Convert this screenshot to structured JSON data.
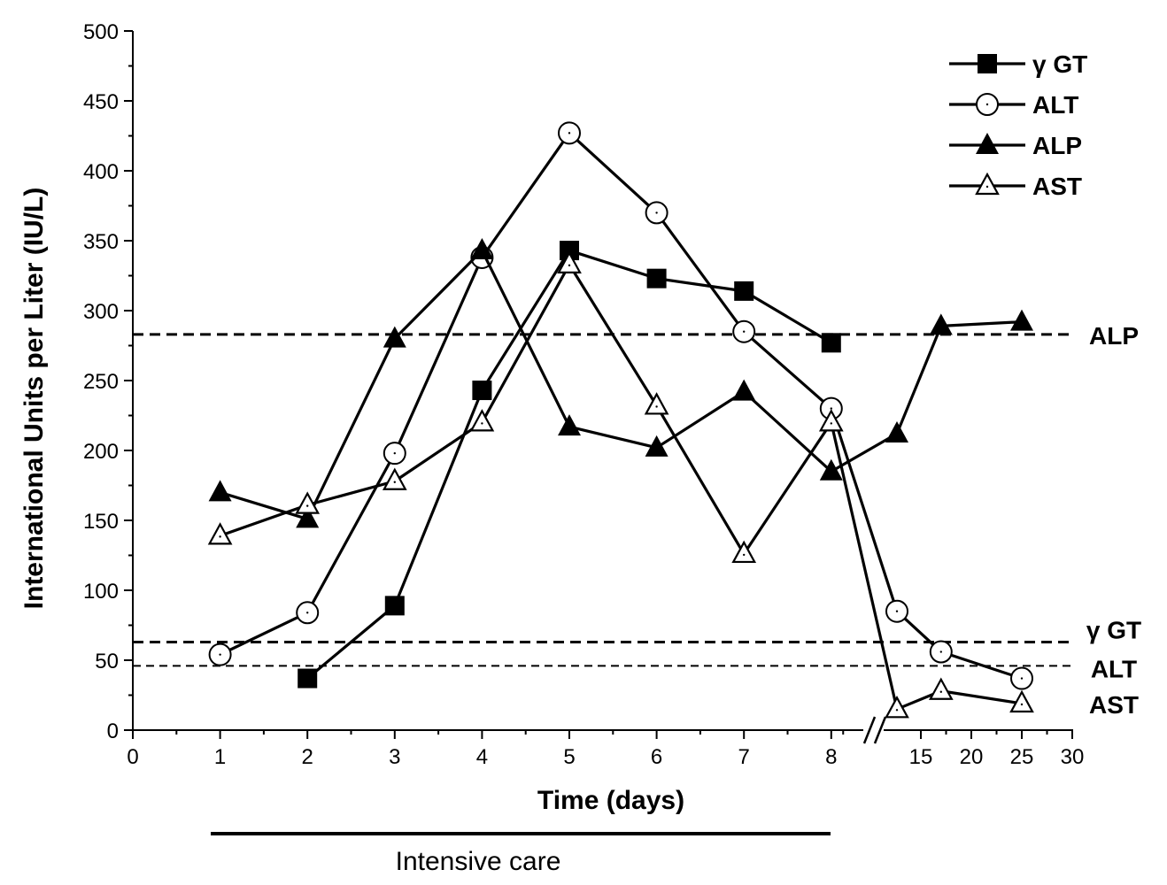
{
  "chart_data": {
    "type": "line",
    "title": "",
    "xlabel": "Time (days)",
    "ylabel": "International Units per Liter  (IU/L)",
    "ylim": [
      0,
      500
    ],
    "y_ticks": [
      "0",
      "50",
      "100",
      "150",
      "200",
      "250",
      "300",
      "350",
      "400",
      "450",
      "500"
    ],
    "x_ticks": [
      "0",
      "1",
      "2",
      "3",
      "4",
      "5",
      "6",
      "7",
      "8",
      "15",
      "20",
      "25",
      "30"
    ],
    "x_axis_note": "broken axis between day 8 and day 15",
    "series": [
      {
        "name": "γ GT",
        "marker": "filled-square",
        "points": [
          [
            2,
            37
          ],
          [
            3,
            89
          ],
          [
            4,
            243
          ],
          [
            5,
            343
          ],
          [
            6,
            323
          ],
          [
            7,
            314
          ],
          [
            8,
            277
          ]
        ]
      },
      {
        "name": "ALT",
        "marker": "open-circle",
        "points": [
          [
            1,
            54
          ],
          [
            2,
            84
          ],
          [
            3,
            198
          ],
          [
            4,
            338
          ],
          [
            5,
            427
          ],
          [
            6,
            370
          ],
          [
            7,
            285
          ],
          [
            8,
            230
          ],
          [
            13,
            85
          ],
          [
            17,
            56
          ],
          [
            25,
            37
          ]
        ]
      },
      {
        "name": "ALP",
        "marker": "filled-triangle",
        "points": [
          [
            1,
            170
          ],
          [
            2,
            151
          ],
          [
            3,
            280
          ],
          [
            4,
            343
          ],
          [
            5,
            217
          ],
          [
            6,
            202
          ],
          [
            7,
            242
          ],
          [
            8,
            185
          ],
          [
            13,
            212
          ],
          [
            17,
            289
          ],
          [
            25,
            292
          ]
        ]
      },
      {
        "name": "AST",
        "marker": "open-triangle",
        "points": [
          [
            1,
            139
          ],
          [
            2,
            161
          ],
          [
            3,
            178
          ],
          [
            4,
            220
          ],
          [
            5,
            333
          ],
          [
            6,
            232
          ],
          [
            7,
            126
          ],
          [
            8,
            220
          ],
          [
            13,
            15
          ],
          [
            17,
            28
          ],
          [
            25,
            19
          ]
        ]
      }
    ],
    "reference_lines": [
      {
        "label": "ALP",
        "value": 283
      },
      {
        "label": "γ GT",
        "value": 63
      },
      {
        "label": "ALT",
        "value": 46
      },
      {
        "label": "AST",
        "value": 0
      }
    ],
    "legend": {
      "position": "top-right",
      "entries": [
        "γ GT",
        "ALT",
        "ALP",
        "AST"
      ]
    },
    "annotation": {
      "text": "Intensive care",
      "from_day": 1,
      "to_day": 8
    }
  }
}
